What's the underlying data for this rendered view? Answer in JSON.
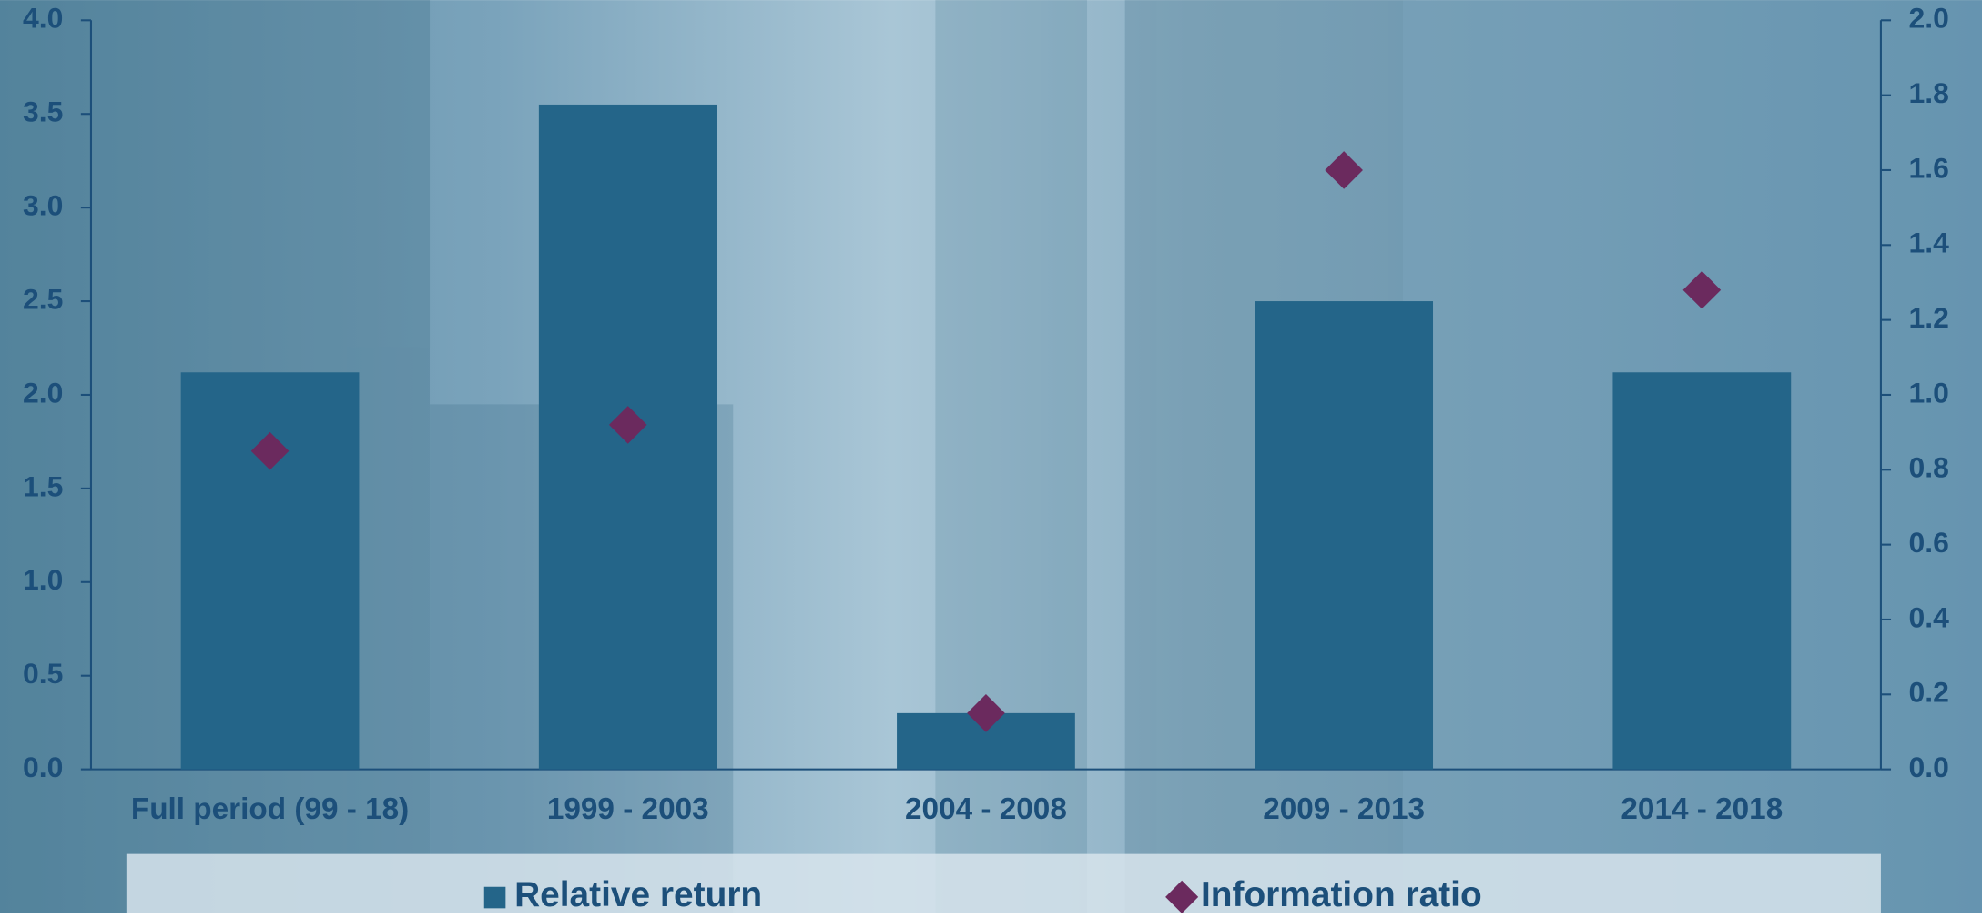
{
  "chart_data": {
    "type": "bar",
    "categories": [
      "Full period (99 - 18)",
      "1999 - 2003",
      "2004 - 2008",
      "2009 - 2013",
      "2014 - 2018"
    ],
    "series": [
      {
        "name": "Relative return",
        "type": "bar",
        "color": "#246589",
        "values": [
          2.12,
          3.55,
          0.3,
          2.5,
          2.12
        ]
      },
      {
        "name": "Information ratio",
        "type": "scatter",
        "axis": "y2",
        "color": "#6b2a5e",
        "values": [
          0.85,
          0.92,
          0.15,
          1.6,
          1.28
        ]
      }
    ],
    "ylim": [
      0,
      4
    ],
    "yticks": [
      {
        "value": 0,
        "label": "0.0"
      },
      0.5,
      {
        "value": 1,
        "label": "1.0"
      },
      1.5,
      {
        "value": 2,
        "label": "2.0"
      },
      2.5,
      {
        "value": 3,
        "label": "3.0"
      },
      3.5,
      {
        "value": 4,
        "label": "4.0"
      }
    ],
    "y2lim": [
      0,
      2
    ],
    "y2ticks": [
      {
        "value": 0,
        "label": "0.0"
      },
      0.2,
      0.4,
      0.6,
      0.8,
      {
        "value": 1,
        "label": "1.0"
      },
      1.2,
      1.4,
      1.6,
      1.8,
      {
        "value": 2,
        "label": "2.0"
      }
    ],
    "grid": false,
    "legend": "bottom"
  }
}
